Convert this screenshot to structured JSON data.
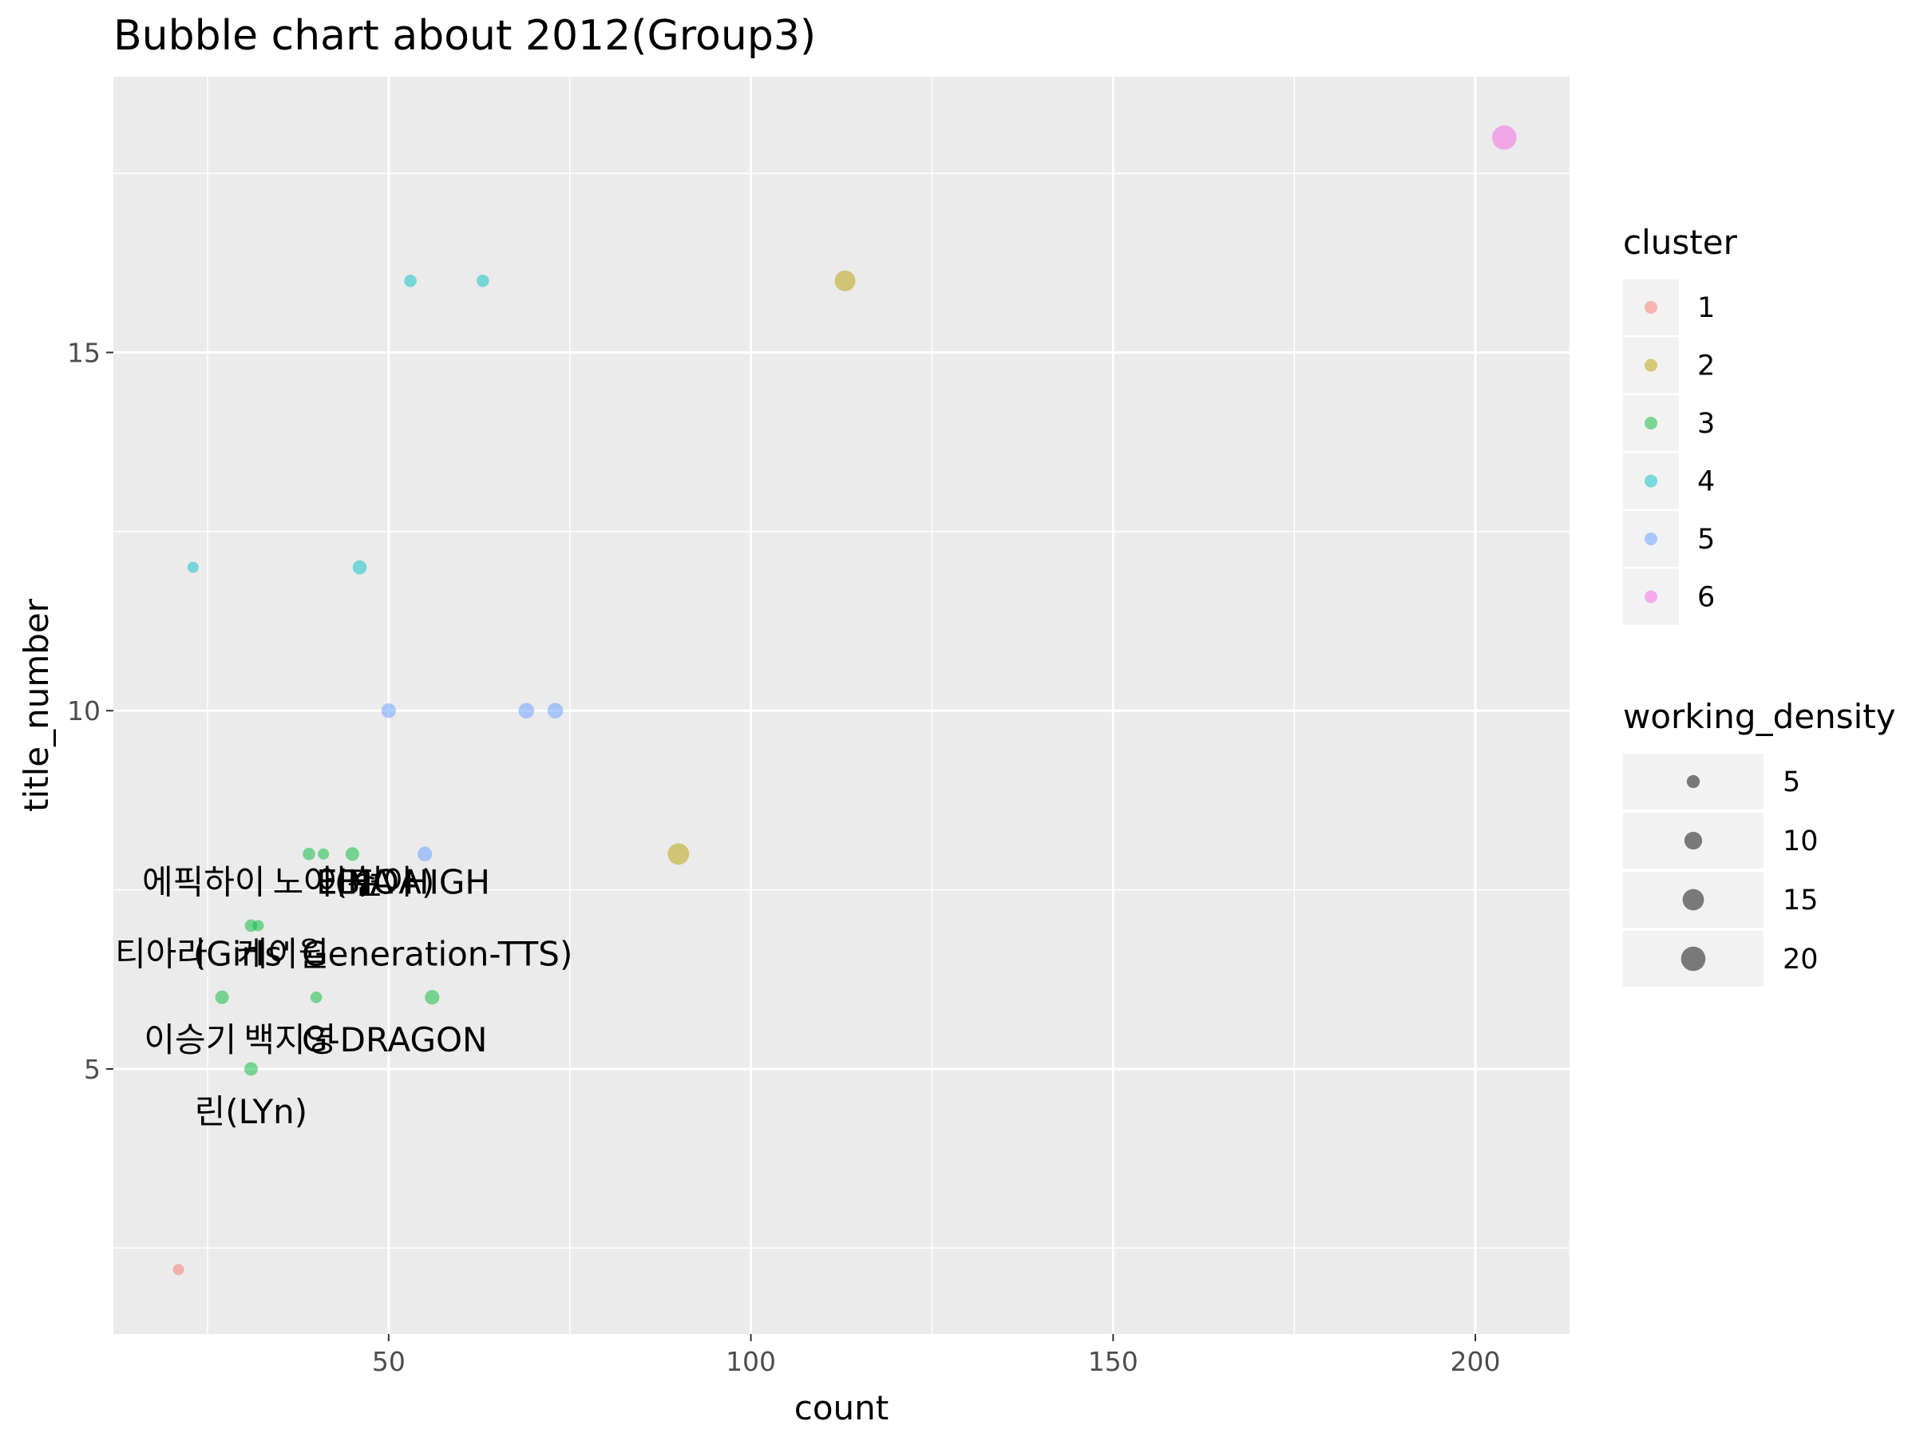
{
  "chart_data": {
    "type": "scatter",
    "title": "Bubble chart about 2012(Group3)",
    "xlabel": "count",
    "ylabel": "title_number",
    "xlim": [
      12,
      213
    ],
    "ylim": [
      1.3,
      18.85
    ],
    "x_ticks": [
      50,
      100,
      150,
      200
    ],
    "y_ticks": [
      5,
      10,
      15
    ],
    "grid": true,
    "legend_position": "right",
    "color_legend": {
      "title": "cluster",
      "entries": [
        {
          "label": "1",
          "color": "#F8766D"
        },
        {
          "label": "2",
          "color": "#B79F00"
        },
        {
          "label": "3",
          "color": "#00BA38"
        },
        {
          "label": "4",
          "color": "#00BFC4"
        },
        {
          "label": "5",
          "color": "#619CFF"
        },
        {
          "label": "6",
          "color": "#F564E3"
        }
      ]
    },
    "size_legend": {
      "title": "working_density",
      "entries": [
        {
          "label": "5",
          "value": 5
        },
        {
          "label": "10",
          "value": 10
        },
        {
          "label": "15",
          "value": 15
        },
        {
          "label": "20",
          "value": 20
        }
      ]
    },
    "points": [
      {
        "x": 204,
        "y": 18,
        "size": 20,
        "cluster": "6"
      },
      {
        "x": 113,
        "y": 16,
        "size": 14,
        "cluster": "2"
      },
      {
        "x": 90,
        "y": 8,
        "size": 15,
        "cluster": "2"
      },
      {
        "x": 53,
        "y": 16,
        "size": 4.5,
        "cluster": "4"
      },
      {
        "x": 63,
        "y": 16,
        "size": 4.5,
        "cluster": "4"
      },
      {
        "x": 23,
        "y": 12,
        "size": 3.5,
        "cluster": "4"
      },
      {
        "x": 46,
        "y": 12,
        "size": 6,
        "cluster": "4"
      },
      {
        "x": 50,
        "y": 10,
        "size": 6.5,
        "cluster": "5"
      },
      {
        "x": 69,
        "y": 10,
        "size": 7.5,
        "cluster": "5"
      },
      {
        "x": 73,
        "y": 10,
        "size": 7.5,
        "cluster": "5"
      },
      {
        "x": 55,
        "y": 8,
        "size": 6.5,
        "cluster": "5"
      },
      {
        "x": 39,
        "y": 8,
        "size": 4.5,
        "cluster": "3"
      },
      {
        "x": 41,
        "y": 8,
        "size": 3.5,
        "cluster": "3"
      },
      {
        "x": 45,
        "y": 8,
        "size": 5.5,
        "cluster": "3"
      },
      {
        "x": 31,
        "y": 7,
        "size": 4.5,
        "cluster": "3"
      },
      {
        "x": 32,
        "y": 7,
        "size": 3.5,
        "cluster": "3"
      },
      {
        "x": 27,
        "y": 6,
        "size": 5.5,
        "cluster": "3"
      },
      {
        "x": 40,
        "y": 6,
        "size": 3.8,
        "cluster": "3"
      },
      {
        "x": 56,
        "y": 6,
        "size": 6.5,
        "cluster": "3"
      },
      {
        "x": 31,
        "y": 5,
        "size": 5.5,
        "cluster": "3"
      },
      {
        "x": 21,
        "y": 2.2,
        "size": 3.5,
        "cluster": "1"
      }
    ],
    "annotations": [
      {
        "text": "에픽하이",
        "x": 33,
        "y": 7.6,
        "anchor": "end",
        "size": "small"
      },
      {
        "text": "노아(HOA)",
        "x": 34,
        "y": 7.6,
        "anchor": "start",
        "size": "large"
      },
      {
        "text": "EBIA HIGH",
        "x": 40,
        "y": 7.6,
        "anchor": "start",
        "size": "large"
      },
      {
        "text": "이수",
        "x": 40,
        "y": 7.6,
        "anchor": "start",
        "size": "small"
      },
      {
        "text": "현아",
        "x": 45,
        "y": 7.6,
        "anchor": "start",
        "size": "small"
      },
      {
        "text": "티아라",
        "x": 25,
        "y": 6.6,
        "anchor": "end",
        "size": "small"
      },
      {
        "text": "(Girls' Generation-TTS)",
        "x": 23,
        "y": 6.6,
        "anchor": "start",
        "size": "large"
      },
      {
        "text": "케이윌",
        "x": 29,
        "y": 6.6,
        "anchor": "start",
        "size": "small"
      },
      {
        "text": "이승기",
        "x": 29,
        "y": 5.4,
        "anchor": "end",
        "size": "small"
      },
      {
        "text": "백지영",
        "x": 30,
        "y": 5.4,
        "anchor": "start",
        "size": "small"
      },
      {
        "text": "G-DRAGON",
        "x": 38,
        "y": 5.4,
        "anchor": "start",
        "size": "large"
      },
      {
        "text": "린(LYn)",
        "x": 31,
        "y": 4.4,
        "anchor": "middle",
        "size": "large"
      }
    ]
  }
}
